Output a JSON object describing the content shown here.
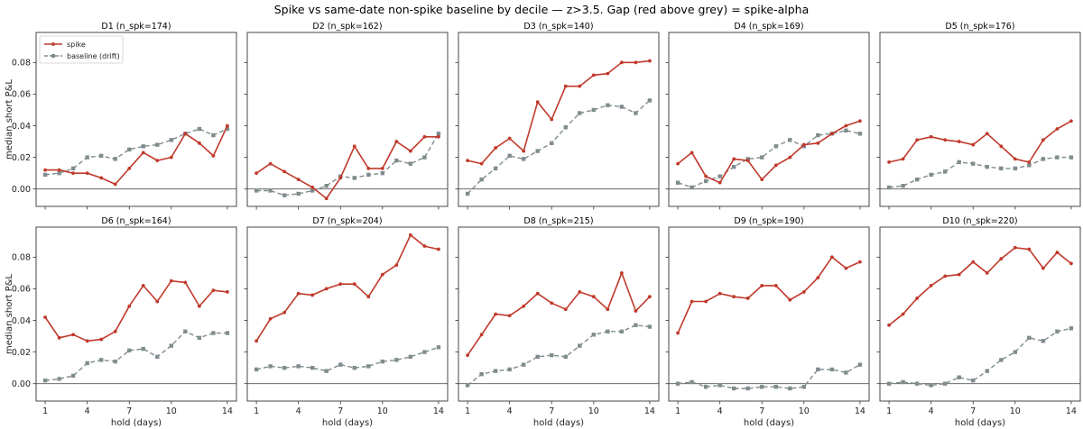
{
  "figure": {
    "suptitle": "Spike vs same-date non-spike baseline by decile — z>3.5. Gap (red above grey) = spike-alpha",
    "xlabel": "hold (days)",
    "ylabel": "median short P&L"
  },
  "colors": {
    "spike": "#c0392b",
    "baseline": "#7f8c8d",
    "zero_line": "#555555",
    "axes": "#333333"
  },
  "chart_data": [
    {
      "type": "line",
      "title": "D1  (n_spk=174)",
      "x": [
        1,
        2,
        3,
        4,
        5,
        6,
        7,
        8,
        9,
        10,
        11,
        12,
        13,
        14
      ],
      "xticks": [
        1,
        4,
        7,
        10,
        14
      ],
      "ylim": [
        -0.011,
        0.099
      ],
      "yticks": [
        "0.00",
        "0.02",
        "0.04",
        "0.06",
        "0.08"
      ],
      "legend": "top-left",
      "series": [
        {
          "name": "spike",
          "values": [
            0.012,
            0.012,
            0.01,
            0.01,
            0.007,
            0.003,
            0.013,
            0.023,
            0.018,
            0.02,
            0.035,
            0.029,
            0.021,
            0.04
          ]
        },
        {
          "name": "baseline (drift)",
          "values": [
            0.009,
            0.01,
            0.013,
            0.02,
            0.021,
            0.019,
            0.025,
            0.027,
            0.028,
            0.031,
            0.035,
            0.038,
            0.034,
            0.038
          ]
        }
      ]
    },
    {
      "type": "line",
      "title": "D2  (n_spk=162)",
      "x": [
        1,
        2,
        3,
        4,
        5,
        6,
        7,
        8,
        9,
        10,
        11,
        12,
        13,
        14
      ],
      "xticks": [
        1,
        4,
        7,
        10,
        14
      ],
      "ylim": [
        -0.011,
        0.099
      ],
      "yticks": [
        "0.00",
        "0.02",
        "0.04",
        "0.06",
        "0.08"
      ],
      "series": [
        {
          "name": "spike",
          "values": [
            0.01,
            0.016,
            0.011,
            0.006,
            0.001,
            -0.006,
            0.007,
            0.027,
            0.013,
            0.013,
            0.03,
            0.024,
            0.033,
            0.033
          ]
        },
        {
          "name": "baseline (drift)",
          "values": [
            -0.001,
            -0.001,
            -0.004,
            -0.003,
            -0.001,
            0.002,
            0.008,
            0.007,
            0.009,
            0.01,
            0.018,
            0.016,
            0.02,
            0.035
          ]
        }
      ]
    },
    {
      "type": "line",
      "title": "D3  (n_spk=140)",
      "x": [
        1,
        2,
        3,
        4,
        5,
        6,
        7,
        8,
        9,
        10,
        11,
        12,
        13,
        14
      ],
      "xticks": [
        1,
        4,
        7,
        10,
        14
      ],
      "ylim": [
        -0.011,
        0.099
      ],
      "yticks": [
        "0.00",
        "0.02",
        "0.04",
        "0.06",
        "0.08"
      ],
      "series": [
        {
          "name": "spike",
          "values": [
            0.018,
            0.016,
            0.026,
            0.032,
            0.024,
            0.055,
            0.044,
            0.065,
            0.065,
            0.072,
            0.073,
            0.08,
            0.08,
            0.081
          ]
        },
        {
          "name": "baseline (drift)",
          "values": [
            -0.003,
            0.006,
            0.013,
            0.021,
            0.019,
            0.024,
            0.029,
            0.039,
            0.048,
            0.05,
            0.053,
            0.052,
            0.048,
            0.056
          ]
        }
      ]
    },
    {
      "type": "line",
      "title": "D4  (n_spk=169)",
      "x": [
        1,
        2,
        3,
        4,
        5,
        6,
        7,
        8,
        9,
        10,
        11,
        12,
        13,
        14
      ],
      "xticks": [
        1,
        4,
        7,
        10,
        14
      ],
      "ylim": [
        -0.011,
        0.099
      ],
      "yticks": [
        "0.00",
        "0.02",
        "0.04",
        "0.06",
        "0.08"
      ],
      "series": [
        {
          "name": "spike",
          "values": [
            0.016,
            0.023,
            0.008,
            0.004,
            0.019,
            0.018,
            0.006,
            0.015,
            0.02,
            0.028,
            0.029,
            0.035,
            0.04,
            0.043
          ]
        },
        {
          "name": "baseline (drift)",
          "values": [
            0.004,
            0.001,
            0.005,
            0.008,
            0.014,
            0.019,
            0.02,
            0.027,
            0.031,
            0.027,
            0.034,
            0.035,
            0.037,
            0.035
          ]
        }
      ]
    },
    {
      "type": "line",
      "title": "D5  (n_spk=176)",
      "x": [
        1,
        2,
        3,
        4,
        5,
        6,
        7,
        8,
        9,
        10,
        11,
        12,
        13,
        14
      ],
      "xticks": [
        1,
        4,
        7,
        10,
        14
      ],
      "ylim": [
        -0.011,
        0.099
      ],
      "yticks": [
        "0.00",
        "0.02",
        "0.04",
        "0.06",
        "0.08"
      ],
      "series": [
        {
          "name": "spike",
          "values": [
            0.017,
            0.019,
            0.031,
            0.033,
            0.031,
            0.03,
            0.028,
            0.035,
            0.027,
            0.019,
            0.017,
            0.031,
            0.038,
            0.043
          ]
        },
        {
          "name": "baseline (drift)",
          "values": [
            0.001,
            0.002,
            0.006,
            0.009,
            0.011,
            0.017,
            0.016,
            0.014,
            0.013,
            0.013,
            0.015,
            0.019,
            0.02,
            0.02
          ]
        }
      ]
    },
    {
      "type": "line",
      "title": "D6  (n_spk=164)",
      "x": [
        1,
        2,
        3,
        4,
        5,
        6,
        7,
        8,
        9,
        10,
        11,
        12,
        13,
        14
      ],
      "xticks": [
        1,
        4,
        7,
        10,
        14
      ],
      "ylim": [
        -0.011,
        0.099
      ],
      "yticks": [
        "0.00",
        "0.02",
        "0.04",
        "0.06",
        "0.08"
      ],
      "series": [
        {
          "name": "spike",
          "values": [
            0.042,
            0.029,
            0.031,
            0.027,
            0.028,
            0.033,
            0.049,
            0.062,
            0.052,
            0.065,
            0.064,
            0.049,
            0.059,
            0.058
          ]
        },
        {
          "name": "baseline (drift)",
          "values": [
            0.002,
            0.003,
            0.005,
            0.013,
            0.015,
            0.014,
            0.021,
            0.022,
            0.017,
            0.024,
            0.033,
            0.029,
            0.032,
            0.032
          ]
        }
      ]
    },
    {
      "type": "line",
      "title": "D7  (n_spk=204)",
      "x": [
        1,
        2,
        3,
        4,
        5,
        6,
        7,
        8,
        9,
        10,
        11,
        12,
        13,
        14
      ],
      "xticks": [
        1,
        4,
        7,
        10,
        14
      ],
      "ylim": [
        -0.011,
        0.099
      ],
      "yticks": [
        "0.00",
        "0.02",
        "0.04",
        "0.06",
        "0.08"
      ],
      "series": [
        {
          "name": "spike",
          "values": [
            0.027,
            0.041,
            0.045,
            0.057,
            0.056,
            0.06,
            0.063,
            0.063,
            0.055,
            0.069,
            0.075,
            0.094,
            0.087,
            0.085
          ]
        },
        {
          "name": "baseline (drift)",
          "values": [
            0.009,
            0.011,
            0.01,
            0.011,
            0.01,
            0.008,
            0.012,
            0.01,
            0.011,
            0.014,
            0.015,
            0.017,
            0.02,
            0.023
          ]
        }
      ]
    },
    {
      "type": "line",
      "title": "D8  (n_spk=215)",
      "x": [
        1,
        2,
        3,
        4,
        5,
        6,
        7,
        8,
        9,
        10,
        11,
        12,
        13,
        14
      ],
      "xticks": [
        1,
        4,
        7,
        10,
        14
      ],
      "ylim": [
        -0.011,
        0.099
      ],
      "yticks": [
        "0.00",
        "0.02",
        "0.04",
        "0.06",
        "0.08"
      ],
      "series": [
        {
          "name": "spike",
          "values": [
            0.018,
            0.031,
            0.044,
            0.043,
            0.049,
            0.057,
            0.051,
            0.047,
            0.058,
            0.055,
            0.047,
            0.07,
            0.046,
            0.055
          ]
        },
        {
          "name": "baseline (drift)",
          "values": [
            -0.001,
            0.006,
            0.008,
            0.009,
            0.012,
            0.017,
            0.018,
            0.017,
            0.024,
            0.031,
            0.033,
            0.033,
            0.037,
            0.036
          ]
        }
      ]
    },
    {
      "type": "line",
      "title": "D9  (n_spk=190)",
      "x": [
        1,
        2,
        3,
        4,
        5,
        6,
        7,
        8,
        9,
        10,
        11,
        12,
        13,
        14
      ],
      "xticks": [
        1,
        4,
        7,
        10,
        14
      ],
      "ylim": [
        -0.011,
        0.099
      ],
      "yticks": [
        "0.00",
        "0.02",
        "0.04",
        "0.06",
        "0.08"
      ],
      "series": [
        {
          "name": "spike",
          "values": [
            0.032,
            0.052,
            0.052,
            0.057,
            0.055,
            0.054,
            0.062,
            0.062,
            0.053,
            0.058,
            0.067,
            0.08,
            0.073,
            0.077
          ]
        },
        {
          "name": "baseline (drift)",
          "values": [
            0.0,
            0.001,
            -0.002,
            -0.001,
            -0.003,
            -0.003,
            -0.002,
            -0.002,
            -0.003,
            -0.002,
            0.009,
            0.009,
            0.007,
            0.012
          ]
        }
      ]
    },
    {
      "type": "line",
      "title": "D10  (n_spk=220)",
      "x": [
        1,
        2,
        3,
        4,
        5,
        6,
        7,
        8,
        9,
        10,
        11,
        12,
        13,
        14
      ],
      "xticks": [
        1,
        4,
        7,
        10,
        14
      ],
      "ylim": [
        -0.011,
        0.099
      ],
      "yticks": [
        "0.00",
        "0.02",
        "0.04",
        "0.06",
        "0.08"
      ],
      "series": [
        {
          "name": "spike",
          "values": [
            0.037,
            0.044,
            0.054,
            0.062,
            0.068,
            0.069,
            0.077,
            0.07,
            0.079,
            0.086,
            0.085,
            0.073,
            0.083,
            0.076
          ]
        },
        {
          "name": "baseline (drift)",
          "values": [
            0.0,
            0.001,
            0.0,
            -0.001,
            0.0,
            0.004,
            0.002,
            0.008,
            0.015,
            0.02,
            0.029,
            0.027,
            0.033,
            0.035
          ]
        }
      ]
    }
  ]
}
